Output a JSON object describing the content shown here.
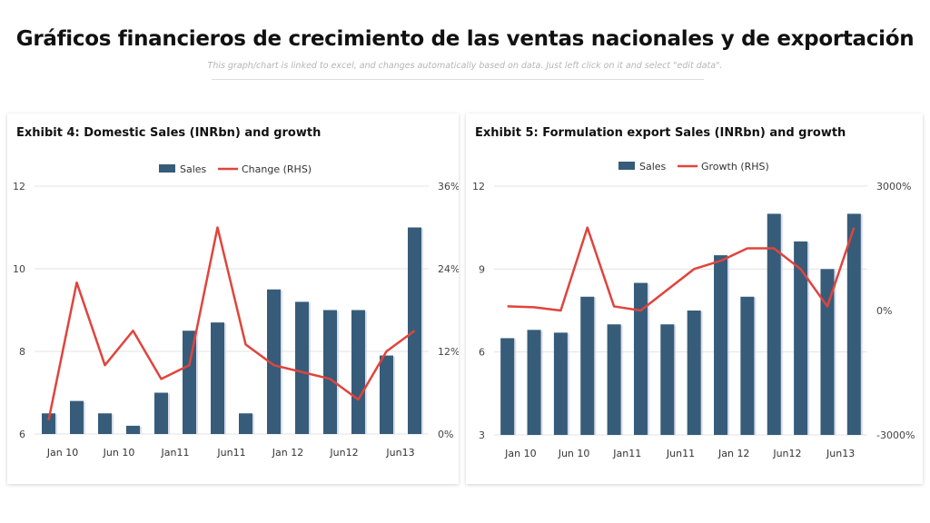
{
  "header": {
    "title": "Gráficos financieros de crecimiento de las ventas nacionales y de exportación",
    "subtitle": "This graph/chart is linked to excel, and changes automatically based on data. Just left click on it and select \"edit data\"."
  },
  "colors": {
    "bar": "#365c7a",
    "line": "#e0443c",
    "grid": "#e3e3e3"
  },
  "chart_data": [
    {
      "type": "bar",
      "title": "Exhibit 4: Domestic Sales (INRbn) and growth",
      "x_labels": [
        "Jan 10",
        "Jun 10",
        "Jan11",
        "Jun11",
        "Jan 12",
        "Jun12",
        "Jun13"
      ],
      "ylim": [
        6,
        12
      ],
      "yticks": [
        "6",
        "8",
        "10",
        "12"
      ],
      "ytick_values": [
        6,
        8,
        10,
        12
      ],
      "y2lim": [
        0,
        36
      ],
      "y2ticks": [
        "0%",
        "12%",
        "24%",
        "36%"
      ],
      "y2tick_values": [
        0,
        12,
        24,
        36
      ],
      "grid": true,
      "legend": "top-center",
      "series": [
        {
          "name": "Sales",
          "type": "bar",
          "axis": "left",
          "values": [
            6.5,
            6.8,
            6.5,
            6.2,
            7.0,
            8.5,
            8.7,
            6.5,
            9.5,
            9.2,
            9.0,
            9.0,
            7.9,
            11.0
          ]
        },
        {
          "name": "Change (RHS)",
          "type": "line",
          "axis": "right",
          "values": [
            2,
            22,
            10,
            15,
            8,
            10,
            30,
            13,
            10,
            9,
            8,
            5,
            12,
            15
          ]
        }
      ]
    },
    {
      "type": "bar",
      "title": "Exhibit 5: Formulation export Sales (INRbn) and growth",
      "x_labels": [
        "Jan 10",
        "Jun 10",
        "Jan11",
        "Jun11",
        "Jan 12",
        "Jun12",
        "Jun13"
      ],
      "ylim": [
        3,
        12
      ],
      "yticks": [
        "3",
        "6",
        "9",
        "12"
      ],
      "ytick_values": [
        3,
        6,
        9,
        12
      ],
      "y2lim": [
        -3000,
        3000
      ],
      "y2ticks": [
        "-3000%",
        "0%",
        "3000%"
      ],
      "y2tick_values": [
        -3000,
        0,
        3000
      ],
      "grid": true,
      "legend": "top-center",
      "series": [
        {
          "name": "Sales",
          "type": "bar",
          "axis": "left",
          "values": [
            6.5,
            6.8,
            6.7,
            8.0,
            7.0,
            8.5,
            7.0,
            7.5,
            9.5,
            8.0,
            11.0,
            10.0,
            9.0,
            11.0
          ]
        },
        {
          "name": "Growth (RHS)",
          "type": "line",
          "axis": "right",
          "values": [
            100,
            80,
            0,
            2000,
            100,
            0,
            500,
            1000,
            1200,
            1500,
            1500,
            1000,
            100,
            2000
          ]
        }
      ]
    }
  ]
}
